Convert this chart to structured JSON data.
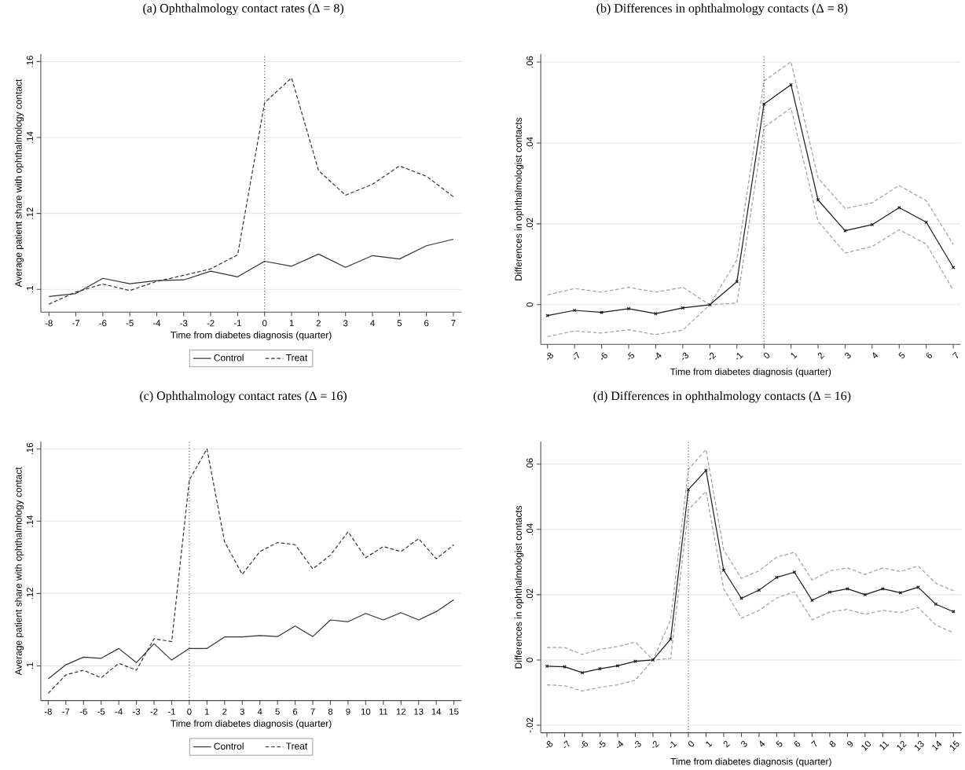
{
  "chart_data": [
    {
      "type": "line",
      "title": "(a) Ophthalmology contact rates (Δ = 8)",
      "xlabel": "Time from diabetes diagnosis (quarter)",
      "ylabel": "Average patient share with ophthalmology contact",
      "x": [
        -8,
        -7,
        -6,
        -5,
        -4,
        -3,
        -2,
        -1,
        0,
        1,
        2,
        3,
        4,
        5,
        6,
        7
      ],
      "series": [
        {
          "name": "Control",
          "color": "#333333",
          "line_style": "solid",
          "values": [
            0.0981,
            0.0989,
            0.1029,
            0.1015,
            0.1023,
            0.1025,
            0.1048,
            0.1033,
            0.1074,
            0.1061,
            0.1093,
            0.1058,
            0.1089,
            0.108,
            0.1115,
            0.1132
          ]
        },
        {
          "name": "Treat",
          "color": "#333333",
          "line_style": "dashed",
          "values": [
            0.0961,
            0.0993,
            0.1014,
            0.0997,
            0.1021,
            0.1037,
            0.1054,
            0.1091,
            0.1492,
            0.1557,
            0.1313,
            0.1248,
            0.1277,
            0.1325,
            0.1298,
            0.1244
          ]
        }
      ],
      "xlim": [
        -8.3,
        7.3
      ],
      "ylim": [
        0.094,
        0.162
      ],
      "xticks": [
        -8,
        -7,
        -6,
        -5,
        -4,
        -3,
        -2,
        -1,
        0,
        1,
        2,
        3,
        4,
        5,
        6,
        7
      ],
      "yticks": [
        {
          "value": 0.1,
          "label": ".1"
        },
        {
          "value": 0.12,
          "label": ".12"
        },
        {
          "value": 0.14,
          "label": ".14"
        },
        {
          "value": 0.16,
          "label": ".16"
        }
      ],
      "ref_lines": [
        {
          "axis": "x",
          "value": 0,
          "line_style": "dotted"
        }
      ],
      "grid": "y",
      "legend": "bottom"
    },
    {
      "type": "line",
      "title": "(b) Differences in ophthalmology contacts (Δ = 8)",
      "xlabel": "Time from diabetes diagnosis (quarter)",
      "ylabel": "Differences in ophthalmologist contacts",
      "x": [
        -8,
        -7,
        -6,
        -5,
        -4,
        -3,
        -2,
        -1,
        0,
        1,
        2,
        3,
        4,
        5,
        6,
        7
      ],
      "series": [
        {
          "color": "#a0a0a0",
          "line_style": "dashed",
          "marker": "none",
          "values": [
            0.0024,
            0.004,
            0.0031,
            0.0043,
            0.0031,
            0.0043,
            0,
            0.0111,
            0.0553,
            0.0601,
            0.0313,
            0.0238,
            0.0252,
            0.0295,
            0.0257,
            0.0149
          ]
        },
        {
          "color": "#a0a0a0",
          "line_style": "dashed",
          "marker": "none",
          "values": [
            -0.0079,
            -0.0065,
            -0.007,
            -0.0062,
            -0.0074,
            -0.0063,
            0,
            0.0004,
            0.0439,
            0.0486,
            0.0206,
            0.0128,
            0.0144,
            0.0185,
            0.015,
            0.0036
          ]
        },
        {
          "color": "#1a1a1a",
          "line_style": "solid",
          "marker": "cross",
          "values": [
            -0.0027,
            -0.0014,
            -0.0019,
            -0.001,
            -0.0022,
            -0.0008,
            0,
            0.0057,
            0.0496,
            0.0544,
            0.0259,
            0.0183,
            0.0198,
            0.024,
            0.0204,
            0.0092
          ]
        }
      ],
      "xlim": [
        -8.25,
        7.27
      ],
      "ylim": [
        -0.0098,
        0.062
      ],
      "xticks": [
        -8,
        -7,
        -6,
        -5,
        -4,
        -3,
        -2,
        -1,
        0,
        1,
        2,
        3,
        4,
        5,
        6,
        7
      ],
      "yticks": [
        0,
        {
          "value": 0.02,
          "label": ".02"
        },
        {
          "value": 0.04,
          "label": ".04"
        },
        {
          "value": 0.06,
          "label": ".06"
        }
      ],
      "ref_lines": [
        {
          "axis": "x",
          "value": 0,
          "line_style": "dotted"
        }
      ],
      "grid": "y"
    },
    {
      "type": "line",
      "title": "(c) Ophthalmology contact rates (Δ = 16)",
      "xlabel": "Time from diabetes diagnosis (quarter)",
      "ylabel": "Average patient share with ophthalmology contact",
      "x": [
        -8,
        -7,
        -6,
        -5,
        -4,
        -3,
        -2,
        -1,
        0,
        1,
        2,
        3,
        4,
        5,
        6,
        7,
        8,
        9,
        10,
        11,
        12,
        13,
        14,
        15
      ],
      "series": [
        {
          "name": "Control",
          "color": "#333333",
          "line_style": "solid",
          "values": [
            0.0964,
            0.1003,
            0.1024,
            0.1021,
            0.1048,
            0.1009,
            0.1061,
            0.1016,
            0.1048,
            0.1048,
            0.108,
            0.108,
            0.1084,
            0.1081,
            0.111,
            0.1081,
            0.1127,
            0.1122,
            0.1145,
            0.1127,
            0.1147,
            0.1127,
            0.115,
            0.1183
          ]
        },
        {
          "name": "Treat",
          "color": "#333333",
          "line_style": "dashed",
          "values": [
            0.0924,
            0.0975,
            0.0988,
            0.0967,
            0.1007,
            0.0988,
            0.1075,
            0.1067,
            0.1514,
            0.16,
            0.1343,
            0.1253,
            0.1316,
            0.1341,
            0.1335,
            0.1268,
            0.1306,
            0.1371,
            0.1299,
            0.133,
            0.1316,
            0.1352,
            0.1296,
            0.1335
          ]
        }
      ],
      "xlim": [
        -8.42,
        15.43
      ],
      "ylim": [
        0.0904,
        0.162
      ],
      "xticks": [
        -8,
        -7,
        -6,
        -5,
        -4,
        -3,
        -2,
        -1,
        0,
        1,
        2,
        3,
        4,
        5,
        6,
        7,
        8,
        9,
        10,
        11,
        12,
        13,
        14,
        15
      ],
      "yticks": [
        {
          "value": 0.1,
          "label": ".1"
        },
        {
          "value": 0.12,
          "label": ".12"
        },
        {
          "value": 0.14,
          "label": ".14"
        },
        {
          "value": 0.16,
          "label": ".16"
        }
      ],
      "ref_lines": [
        {
          "axis": "x",
          "value": 0,
          "line_style": "dotted"
        }
      ],
      "grid": "y",
      "legend": "bottom"
    },
    {
      "type": "line",
      "title": "(d) Differences in ophthalmology contacts (Δ = 16)",
      "xlabel": "Time from diabetes diagnosis (quarter)",
      "ylabel": "Differences in ophthalmologist contacts",
      "x": [
        -8,
        -7,
        -6,
        -5,
        -4,
        -3,
        -2,
        -1,
        0,
        1,
        2,
        3,
        4,
        5,
        6,
        7,
        8,
        9,
        10,
        11,
        12,
        13,
        14,
        15
      ],
      "series": [
        {
          "color": "#a0a0a0",
          "line_style": "dashed",
          "marker": "none",
          "values": [
            0.0038,
            0.0038,
            0.0017,
            0.0033,
            0.0041,
            0.0055,
            0,
            0.0123,
            0.0584,
            0.0645,
            0.0337,
            0.025,
            0.0273,
            0.0315,
            0.033,
            0.0245,
            0.0273,
            0.0282,
            0.0262,
            0.0282,
            0.0271,
            0.0288,
            0.0235,
            0.0212
          ]
        },
        {
          "color": "#a0a0a0",
          "line_style": "dashed",
          "marker": "none",
          "values": [
            -0.0076,
            -0.0079,
            -0.0095,
            -0.0084,
            -0.0076,
            -0.0062,
            0,
            0.0005,
            0.046,
            0.0517,
            0.0218,
            0.0128,
            0.0152,
            0.019,
            0.0209,
            0.0123,
            0.0147,
            0.0155,
            0.014,
            0.0152,
            0.0145,
            0.0161,
            0.0107,
            0.0083
          ]
        },
        {
          "color": "#1a1a1a",
          "line_style": "solid",
          "marker": "cross",
          "values": [
            -0.0019,
            -0.0021,
            -0.0039,
            -0.0027,
            -0.0018,
            -0.0004,
            0,
            0.0064,
            0.0522,
            0.0581,
            0.0275,
            0.0189,
            0.0214,
            0.0253,
            0.0269,
            0.0183,
            0.0208,
            0.0218,
            0.02,
            0.0218,
            0.0206,
            0.0223,
            0.0171,
            0.0148
          ]
        }
      ],
      "xlim": [
        -8.35,
        15.45
      ],
      "ylim": [
        -0.0223,
        0.0669
      ],
      "xticks": [
        -8,
        -7,
        -6,
        -5,
        -4,
        -3,
        -2,
        -1,
        0,
        1,
        2,
        3,
        4,
        5,
        6,
        7,
        8,
        9,
        10,
        11,
        12,
        13,
        14,
        15
      ],
      "yticks": [
        {
          "value": -0.02,
          "label": "-.02"
        },
        0,
        {
          "value": 0.02,
          "label": ".02"
        },
        {
          "value": 0.04,
          "label": ".04"
        },
        {
          "value": 0.06,
          "label": ".06"
        }
      ],
      "ref_lines": [
        {
          "axis": "x",
          "value": 0,
          "line_style": "dotted"
        }
      ],
      "grid": "y"
    }
  ]
}
